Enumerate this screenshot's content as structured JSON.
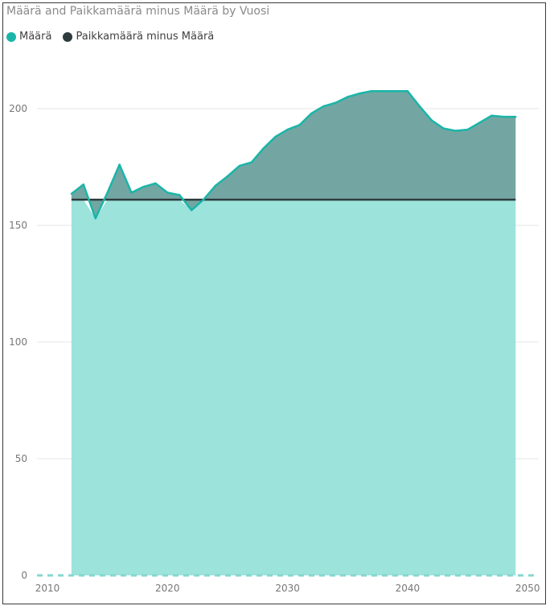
{
  "chart_data": {
    "type": "area",
    "title": "Määrä and Paikkamäärä minus Määrä by Vuosi",
    "xlabel": "",
    "ylabel": "",
    "xlim": [
      2010,
      2050
    ],
    "ylim": [
      0,
      220
    ],
    "x_ticks": [
      "2010",
      "2020",
      "2030",
      "2040",
      "2050"
    ],
    "y_ticks": [
      "0",
      "50",
      "100",
      "150",
      "200"
    ],
    "grid": true,
    "legend_position": "top-left",
    "series": [
      {
        "name": "Määrä",
        "color": "#1AB5A8",
        "x": [
          2012,
          2013,
          2014,
          2015,
          2016,
          2017,
          2018,
          2019,
          2020,
          2021,
          2022,
          2023,
          2024,
          2025,
          2026,
          2027,
          2028,
          2029,
          2030,
          2031,
          2032,
          2033,
          2034,
          2035,
          2036,
          2037,
          2038,
          2039,
          2040,
          2041,
          2042,
          2043,
          2044,
          2045,
          2046,
          2047,
          2048,
          2049
        ],
        "values": [
          163.5,
          167.5,
          153,
          164,
          176,
          164,
          166.5,
          168,
          164,
          163,
          156.5,
          161,
          167,
          171,
          175.5,
          177,
          183,
          188,
          191,
          193,
          198,
          201,
          202.5,
          205,
          206.5,
          207.5,
          207.5,
          207.5,
          207.5,
          201,
          195,
          191.5,
          190.5,
          191,
          194,
          197,
          196.5,
          196.5
        ]
      },
      {
        "name": "Paikkamäärä minus Määrä",
        "color": "#2E3B3E",
        "x": [
          2012,
          2049
        ],
        "values": [
          161,
          161
        ]
      }
    ]
  }
}
